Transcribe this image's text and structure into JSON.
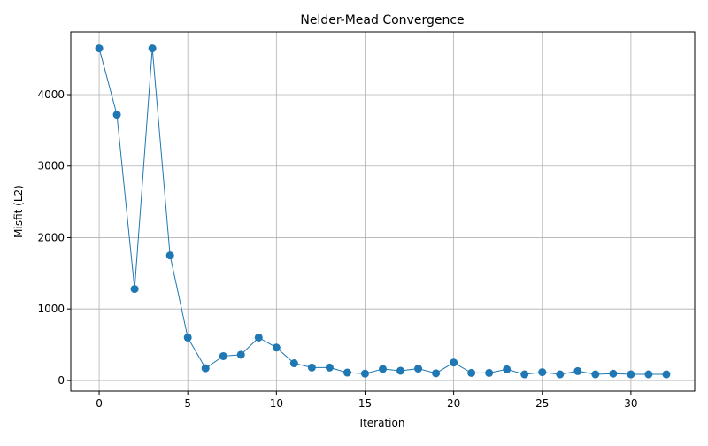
{
  "chart_data": {
    "type": "line",
    "title": "Nelder-Mead Convergence",
    "xlabel": "Iteration",
    "ylabel": "Misfit (L2)",
    "xlim": [
      -1.6,
      33.6
    ],
    "ylim": [
      -150,
      4880
    ],
    "xticks": [
      0,
      5,
      10,
      15,
      20,
      25,
      30
    ],
    "yticks": [
      0,
      1000,
      2000,
      3000,
      4000
    ],
    "grid": true,
    "colors": {
      "series": "#1f77b4",
      "grid": "#b0b0b0",
      "axis": "#000000"
    },
    "series": [
      {
        "x": [
          0,
          1,
          2,
          3,
          4,
          5,
          6,
          7,
          8,
          9,
          10,
          11,
          12,
          13,
          14,
          15,
          16,
          17,
          18,
          19,
          20,
          21,
          22,
          23,
          24,
          25,
          26,
          27,
          28,
          29,
          30,
          31,
          32
        ],
        "values": [
          4650,
          3720,
          1280,
          4650,
          1750,
          600,
          170,
          340,
          360,
          600,
          460,
          240,
          180,
          180,
          110,
          95,
          160,
          135,
          165,
          100,
          250,
          105,
          105,
          155,
          85,
          115,
          85,
          130,
          85,
          95,
          85,
          85,
          85
        ]
      }
    ]
  }
}
